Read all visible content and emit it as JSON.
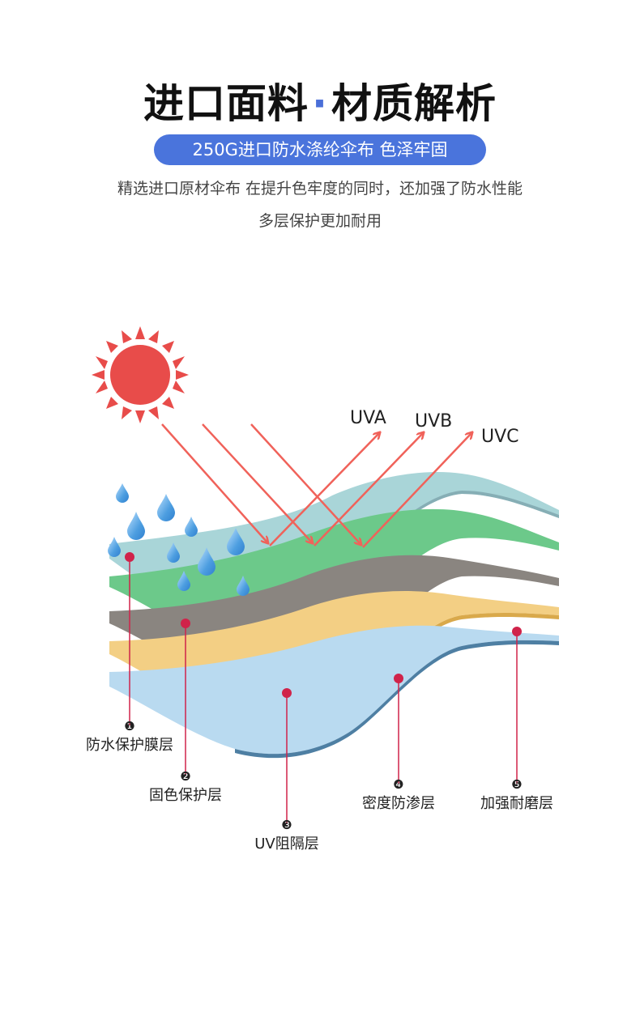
{
  "header": {
    "title_left": "进口面料",
    "title_dot": "·",
    "title_right": "材质解析",
    "badge": "250G进口防水涤纶伞布 色泽牢固",
    "desc_line1": "精选进口原材伞布 在提升色牢度的同时，还加强了防水性能",
    "desc_line2": "多层保护更加耐用"
  },
  "uv_rays": [
    {
      "label": "UVA"
    },
    {
      "label": "UVB"
    },
    {
      "label": "UVC"
    }
  ],
  "layers": [
    {
      "num": "❶",
      "label": "防水保护膜层",
      "color": "#a9d5d8"
    },
    {
      "num": "❷",
      "label": "固色保护层",
      "color": "#6cc98a"
    },
    {
      "num": "❸",
      "label": "UV阻隔层",
      "color": "#8a8580"
    },
    {
      "num": "❹",
      "label": "密度防渗层",
      "color": "#f3cf84"
    },
    {
      "num": "❺",
      "label": "加强耐磨层",
      "color": "#b9daf0"
    }
  ],
  "colors": {
    "accent": "#4a74dc",
    "sun": "#e84c4a",
    "ray": "#f0625a",
    "marker": "#d0234a",
    "drop": "#4d9ee0"
  }
}
